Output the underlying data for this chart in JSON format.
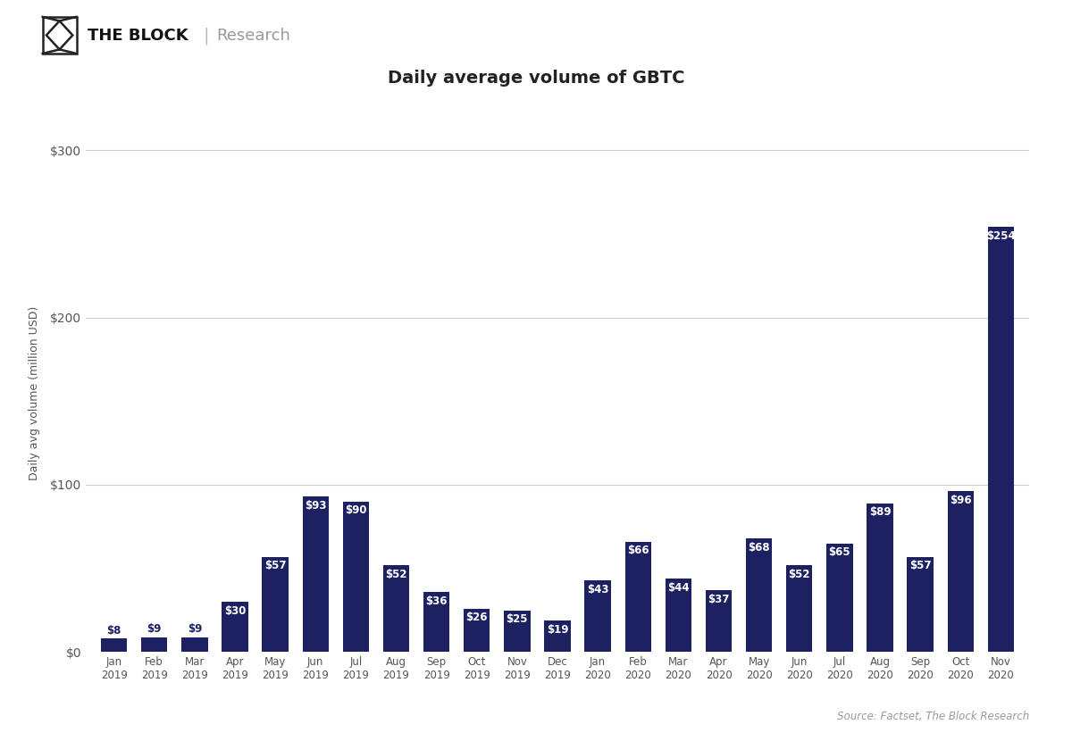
{
  "title": "Daily average volume of GBTC",
  "ylabel": "Daily avg volume (million USD)",
  "categories": [
    "Jan\n2019",
    "Feb\n2019",
    "Mar\n2019",
    "Apr\n2019",
    "May\n2019",
    "Jun\n2019",
    "Jul\n2019",
    "Aug\n2019",
    "Sep\n2019",
    "Oct\n2019",
    "Nov\n2019",
    "Dec\n2019",
    "Jan\n2020",
    "Feb\n2020",
    "Mar\n2020",
    "Apr\n2020",
    "May\n2020",
    "Jun\n2020",
    "Jul\n2020",
    "Aug\n2020",
    "Sep\n2020",
    "Oct\n2020",
    "Nov\n2020"
  ],
  "values": [
    8,
    9,
    9,
    30,
    57,
    93,
    90,
    52,
    36,
    26,
    25,
    19,
    43,
    66,
    44,
    37,
    68,
    52,
    65,
    89,
    57,
    96,
    254
  ],
  "bar_color": "#1e2161",
  "label_color_inside": "#ffffff",
  "label_color_outside": "#1e2161",
  "background_color": "#ffffff",
  "grid_color": "#cccccc",
  "yticks": [
    0,
    100,
    200,
    300
  ],
  "ytick_labels": [
    "$0",
    "$100",
    "$200",
    "$300"
  ],
  "ylim": [
    0,
    310
  ],
  "source_text": "Source: Factset, The Block Research",
  "header_block": "THE BLOCK",
  "header_research": "Research",
  "title_fontsize": 14,
  "label_fontsize": 8.5,
  "axis_fontsize": 10,
  "small_bar_threshold": 18
}
